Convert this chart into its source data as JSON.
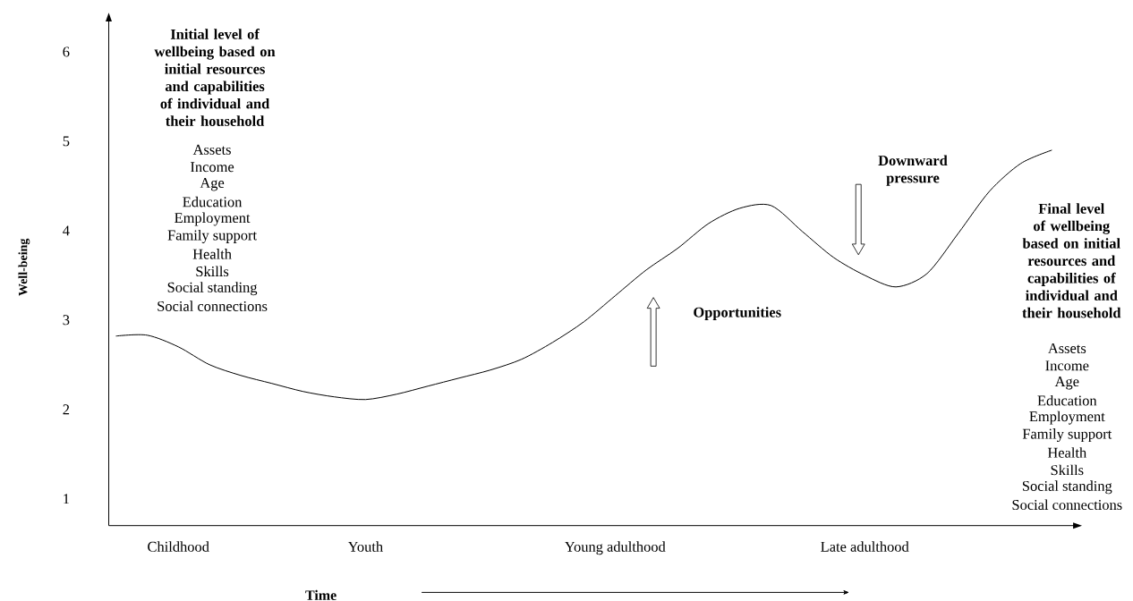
{
  "chart_data": {
    "type": "line",
    "xlabel": "Time",
    "ylabel": "Well-being",
    "categories": [
      null,
      null,
      "Childhood",
      null,
      null,
      null,
      null,
      null,
      "Youth",
      null,
      null,
      null,
      null,
      null,
      null,
      null,
      "Young adulthood",
      null,
      null,
      null,
      null,
      null,
      null,
      null,
      "Late adulthood",
      null,
      null,
      null,
      null,
      null,
      null
    ],
    "color": "#000000",
    "values": [
      2.82,
      2.83,
      2.7,
      2.5,
      2.38,
      2.29,
      2.2,
      2.14,
      2.11,
      2.17,
      2.26,
      2.35,
      2.44,
      2.56,
      2.75,
      2.98,
      3.27,
      3.56,
      3.8,
      4.08,
      4.25,
      4.28,
      3.99,
      3.7,
      3.5,
      3.37,
      3.52,
      3.97,
      4.44,
      4.75,
      4.9
    ],
    "ylim": [
      0.7,
      6.4
    ],
    "yticks": [
      1,
      2,
      3,
      4,
      5,
      6
    ],
    "annotations": [
      "Initial level of wellbeing based on initial resources and capabilities of individual and their household",
      "Assets",
      "Income",
      "Age",
      "Education",
      "Employment",
      "Family support",
      "Health",
      "Skills",
      "Social standing",
      "Social connections",
      "Downward pressure",
      "Opportunities",
      "Final level of wellbeing based on initial resources and capabilities of individual and their household",
      "Assets",
      "Income",
      "Age",
      "Education",
      "Employment",
      "Family support",
      "Health",
      "Skills",
      "Social standing",
      "Social connections"
    ]
  }
}
